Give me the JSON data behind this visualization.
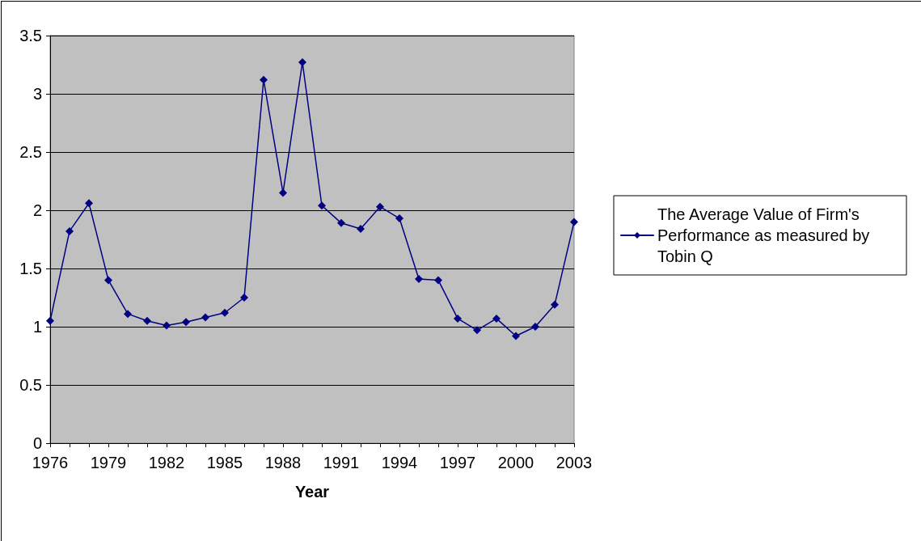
{
  "chart_data": {
    "type": "line",
    "categories": [
      "1976",
      null,
      null,
      "1979",
      null,
      null,
      "1982",
      null,
      null,
      "1985",
      null,
      null,
      "1988",
      null,
      null,
      "1991",
      null,
      null,
      "1994",
      null,
      null,
      "1997",
      null,
      null,
      "2000",
      null,
      null,
      "2003"
    ],
    "series": [
      {
        "name": "The Average Value of Firm's Performance as measured by Tobin Q",
        "color": "#000080",
        "values": [
          1.05,
          1.82,
          2.06,
          1.4,
          1.11,
          1.05,
          1.01,
          1.04,
          1.08,
          1.12,
          1.25,
          3.12,
          2.15,
          3.27,
          2.04,
          1.89,
          1.84,
          2.03,
          1.93,
          1.41,
          1.4,
          1.07,
          0.97,
          1.07,
          0.92,
          1.0,
          1.19,
          1.9
        ]
      }
    ],
    "xlabel": "Year",
    "ylim": [
      0,
      3.5
    ],
    "yticks": [
      0,
      0.5,
      1,
      1.5,
      2,
      2.5,
      3,
      3.5
    ],
    "grid": "y",
    "legend": "right",
    "marker": "diamond",
    "line_style": "solid"
  }
}
